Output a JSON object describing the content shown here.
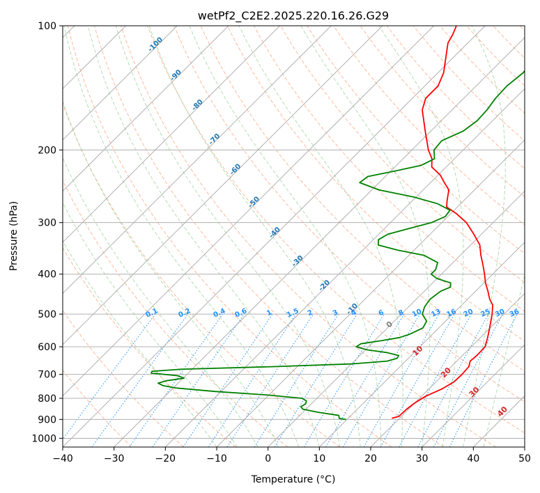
{
  "chart_data": {
    "type": "line",
    "subtype": "skew-T log-P diagram",
    "title": "wetPf2_C2E2.2025.220.16.26.G29",
    "xlabel": "Temperature (°C)",
    "ylabel": "Pressure (hPa)",
    "xlim": [
      -40,
      50
    ],
    "ylim": [
      1050,
      100
    ],
    "y_scale": "log",
    "grid": true,
    "x_ticks": [
      -40,
      -30,
      -20,
      -10,
      0,
      10,
      20,
      30,
      40,
      50
    ],
    "y_ticks": [
      1000,
      900,
      800,
      700,
      600,
      500,
      400,
      300,
      200,
      100
    ],
    "colors": {
      "temperature": "#ff0000",
      "dewpoint": "#008000",
      "isotherm_labels": "#1f77b4",
      "mixing_ratio": "#1e90ff",
      "moist_adiabat_labels": "#d62728",
      "zero_label": "#808080",
      "dry_adiabat": "#ffa07a",
      "moist_adiabat": "#9fd39f",
      "grid": "#b0b0b0"
    },
    "isotherm_labels": [
      {
        "text": "-100",
        "T": -100
      },
      {
        "text": "-90",
        "T": -90
      },
      {
        "text": "-80",
        "T": -80
      },
      {
        "text": "-70",
        "T": -70
      },
      {
        "text": "-60",
        "T": -60
      },
      {
        "text": "-50",
        "T": -50
      },
      {
        "text": "-40",
        "T": -40
      },
      {
        "text": "-30",
        "T": -30
      },
      {
        "text": "-20",
        "T": -20
      },
      {
        "text": "-10",
        "T": -10
      }
    ],
    "mixing_ratio_labels": [
      "0.1",
      "0.2",
      "0.4",
      "0.6",
      "1",
      "1.5",
      "2",
      "3",
      "4",
      "6",
      "8",
      "10",
      "13",
      "16",
      "20",
      "25",
      "30",
      "36"
    ],
    "moist_adiabat_labels": [
      "0",
      "10",
      "20",
      "30",
      "40"
    ],
    "series": [
      {
        "name": "",
        "color": "#ff0000",
        "points": [
          {
            "p": 894,
            "T": 18.5
          },
          {
            "p": 885,
            "T": 19.5
          },
          {
            "p": 850,
            "T": 19.6
          },
          {
            "p": 820,
            "T": 20.0
          },
          {
            "p": 790,
            "T": 20.8
          },
          {
            "p": 760,
            "T": 22.5
          },
          {
            "p": 730,
            "T": 23.5
          },
          {
            "p": 700,
            "T": 23.6
          },
          {
            "p": 670,
            "T": 23.4
          },
          {
            "p": 650,
            "T": 22.6
          },
          {
            "p": 630,
            "T": 22.8
          },
          {
            "p": 600,
            "T": 22.7
          },
          {
            "p": 570,
            "T": 21.4
          },
          {
            "p": 540,
            "T": 19.9
          },
          {
            "p": 500,
            "T": 17.7
          },
          {
            "p": 475,
            "T": 16.0
          },
          {
            "p": 460,
            "T": 14.3
          },
          {
            "p": 440,
            "T": 12.4
          },
          {
            "p": 420,
            "T": 10.3
          },
          {
            "p": 400,
            "T": 8.4
          },
          {
            "p": 380,
            "T": 6.3
          },
          {
            "p": 360,
            "T": 4.0
          },
          {
            "p": 340,
            "T": 1.8
          },
          {
            "p": 320,
            "T": -1.5
          },
          {
            "p": 300,
            "T": -5.2
          },
          {
            "p": 285,
            "T": -9.0
          },
          {
            "p": 275,
            "T": -12.1
          },
          {
            "p": 265,
            "T": -13.3
          },
          {
            "p": 250,
            "T": -15.0
          },
          {
            "p": 240,
            "T": -17.3
          },
          {
            "p": 230,
            "T": -19.6
          },
          {
            "p": 220,
            "T": -22.8
          },
          {
            "p": 210,
            "T": -24.4
          },
          {
            "p": 200,
            "T": -26.8
          },
          {
            "p": 180,
            "T": -31.1
          },
          {
            "p": 160,
            "T": -35.8
          },
          {
            "p": 150,
            "T": -37.4
          },
          {
            "p": 140,
            "T": -37.4
          },
          {
            "p": 130,
            "T": -38.9
          },
          {
            "p": 120,
            "T": -41.3
          },
          {
            "p": 110,
            "T": -43.9
          },
          {
            "p": 105,
            "T": -44.6
          },
          {
            "p": 100,
            "T": -45.6
          }
        ]
      },
      {
        "name": "",
        "color": "#008000",
        "points": [
          {
            "p": 900,
            "T": 9.8
          },
          {
            "p": 895,
            "T": 8.3
          },
          {
            "p": 880,
            "T": 7.6
          },
          {
            "p": 865,
            "T": 3.0
          },
          {
            "p": 850,
            "T": -0.6
          },
          {
            "p": 838,
            "T": -1.5
          },
          {
            "p": 826,
            "T": -1.1
          },
          {
            "p": 812,
            "T": -1.5
          },
          {
            "p": 800,
            "T": -2.9
          },
          {
            "p": 785,
            "T": -10.5
          },
          {
            "p": 770,
            "T": -21.2
          },
          {
            "p": 755,
            "T": -29.5
          },
          {
            "p": 745,
            "T": -32.5
          },
          {
            "p": 735,
            "T": -33.9
          },
          {
            "p": 725,
            "T": -32.7
          },
          {
            "p": 715,
            "T": -29.8
          },
          {
            "p": 705,
            "T": -31.6
          },
          {
            "p": 695,
            "T": -37.2
          },
          {
            "p": 688,
            "T": -37.4
          },
          {
            "p": 680,
            "T": -32.1
          },
          {
            "p": 670,
            "T": -14.0
          },
          {
            "p": 660,
            "T": 0.2
          },
          {
            "p": 650,
            "T": 6.4
          },
          {
            "p": 640,
            "T": 7.8
          },
          {
            "p": 630,
            "T": 7.6
          },
          {
            "p": 620,
            "T": 4.8
          },
          {
            "p": 610,
            "T": 0.2
          },
          {
            "p": 600,
            "T": -2.4
          },
          {
            "p": 590,
            "T": -2.1
          },
          {
            "p": 580,
            "T": 1.3
          },
          {
            "p": 570,
            "T": 4.2
          },
          {
            "p": 560,
            "T": 5.5
          },
          {
            "p": 540,
            "T": 6.9
          },
          {
            "p": 520,
            "T": 6.3
          },
          {
            "p": 500,
            "T": 4.1
          },
          {
            "p": 480,
            "T": 3.1
          },
          {
            "p": 460,
            "T": 2.7
          },
          {
            "p": 440,
            "T": 3.2
          },
          {
            "p": 430,
            "T": 4.3
          },
          {
            "p": 420,
            "T": 3.5
          },
          {
            "p": 410,
            "T": 0.0
          },
          {
            "p": 400,
            "T": -2.0
          },
          {
            "p": 390,
            "T": -2.0
          },
          {
            "p": 375,
            "T": -3.0
          },
          {
            "p": 360,
            "T": -7.1
          },
          {
            "p": 350,
            "T": -13.1
          },
          {
            "p": 340,
            "T": -18.0
          },
          {
            "p": 330,
            "T": -19.0
          },
          {
            "p": 320,
            "T": -18.2
          },
          {
            "p": 310,
            "T": -15.2
          },
          {
            "p": 300,
            "T": -12.0
          },
          {
            "p": 290,
            "T": -10.5
          },
          {
            "p": 280,
            "T": -10.8
          },
          {
            "p": 270,
            "T": -14.5
          },
          {
            "p": 260,
            "T": -20.5
          },
          {
            "p": 250,
            "T": -28.6
          },
          {
            "p": 240,
            "T": -33.8
          },
          {
            "p": 232,
            "T": -33.4
          },
          {
            "p": 225,
            "T": -29.2
          },
          {
            "p": 218,
            "T": -25.2
          },
          {
            "p": 210,
            "T": -23.9
          },
          {
            "p": 200,
            "T": -25.7
          },
          {
            "p": 190,
            "T": -26.0
          },
          {
            "p": 180,
            "T": -23.7
          },
          {
            "p": 170,
            "T": -23.0
          },
          {
            "p": 160,
            "T": -23.2
          },
          {
            "p": 150,
            "T": -23.8
          },
          {
            "p": 140,
            "T": -24.0
          },
          {
            "p": 130,
            "T": -23.4
          },
          {
            "p": 120,
            "T": -24.2
          },
          {
            "p": 110,
            "T": -26.3
          },
          {
            "p": 100,
            "T": -28.5
          }
        ]
      }
    ]
  }
}
